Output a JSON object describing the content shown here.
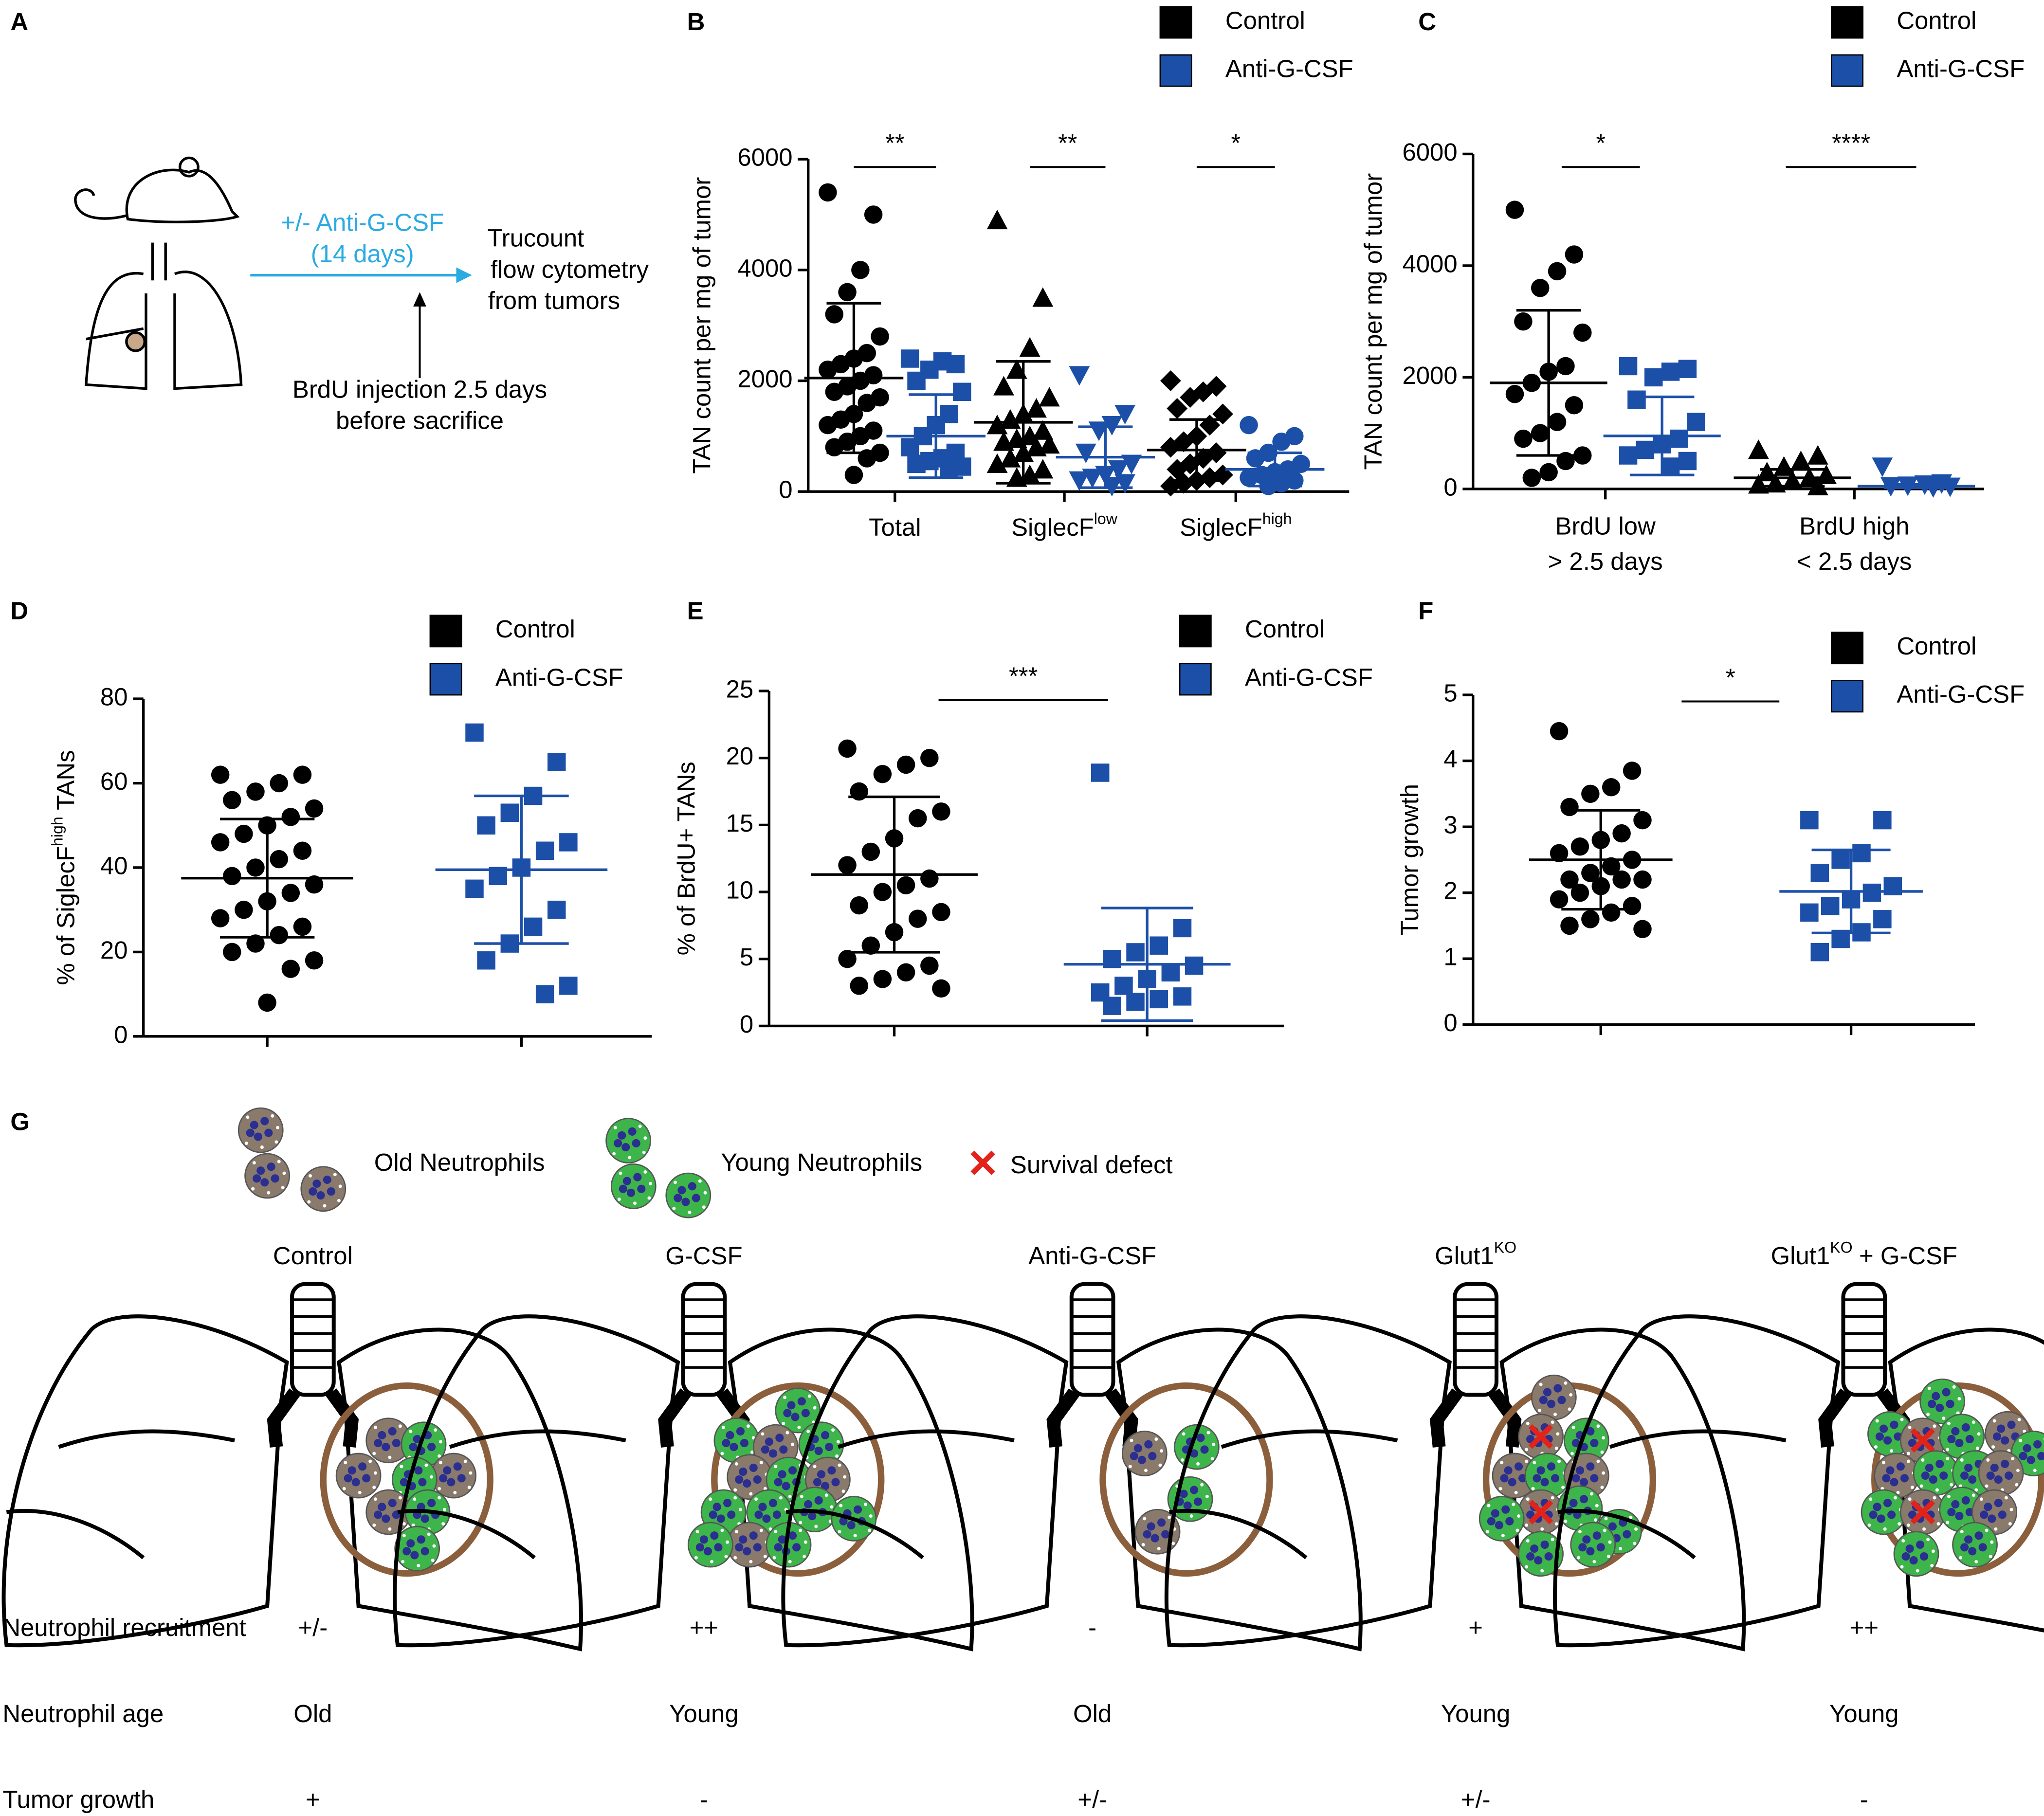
{
  "panel_a": {
    "letter": "A",
    "treatment": [
      "+/- Anti-G-CSF",
      "(14 days)"
    ],
    "readout": [
      "Trucount",
      "flow cytometry",
      "from tumors"
    ],
    "injection": [
      "BrdU injection 2.5 days",
      "before sacrifice"
    ]
  },
  "chart_data": [
    {
      "type": "dot",
      "panel": "B",
      "ylabel": "TAN count per mg of tumor",
      "ylim": [
        0,
        6000
      ],
      "yticks": [
        0,
        2000,
        4000,
        6000
      ],
      "categories": [
        "Total",
        "SiglecF",
        "SiglecF"
      ],
      "category_sups": [
        null,
        "low",
        "high"
      ],
      "series": [
        {
          "name": "Control",
          "color": "#000000",
          "markers": [
            "circle",
            "triangle",
            "diamond"
          ],
          "values": [
            [
              5400,
              5000,
              4000,
              3600,
              3200,
              2800,
              2500,
              2400,
              2300,
              2200,
              2100,
              2000,
              1900,
              1800,
              1700,
              1600,
              1400,
              1300,
              1200,
              1100,
              1000,
              900,
              800,
              700,
              600,
              300
            ],
            [
              4900,
              3500,
              2600,
              2200,
              1900,
              1700,
              1500,
              1400,
              1300,
              1200,
              1100,
              1000,
              950,
              900,
              850,
              800,
              700,
              600,
              500,
              400,
              300,
              250
            ],
            [
              2000,
              1900,
              1800,
              1700,
              1500,
              1400,
              1200,
              1000,
              900,
              800,
              700,
              600,
              500,
              400,
              300,
              250,
              200,
              150,
              100
            ]
          ],
          "means": [
            2050,
            1250,
            750
          ],
          "sds": [
            1350,
            1100,
            550
          ]
        },
        {
          "name": "Anti-G-CSF",
          "color": "#1c50a8",
          "markers": [
            "square",
            "triangle-down",
            "circle"
          ],
          "values": [
            [
              2400,
              2300,
              2350,
              2200,
              2000,
              1800,
              1400,
              1200,
              1000,
              800,
              700,
              600,
              550,
              500,
              450,
              400
            ],
            [
              2100,
              1400,
              1200,
              1100,
              700,
              500,
              400,
              300,
              250,
              200,
              150,
              100
            ],
            [
              1200,
              1000,
              900,
              700,
              600,
              500,
              400,
              350,
              300,
              250,
              200,
              150,
              100
            ]
          ],
          "means": [
            1000,
            620,
            400
          ],
          "sds": [
            750,
            550,
            300
          ]
        }
      ],
      "significance": [
        "**",
        "**",
        "*"
      ]
    },
    {
      "type": "dot",
      "panel": "C",
      "ylabel": "TAN count per mg of tumor",
      "ylim": [
        0,
        6000
      ],
      "yticks": [
        0,
        2000,
        4000,
        6000
      ],
      "categories": [
        [
          "BrdU low",
          "> 2.5 days"
        ],
        [
          "BrdU high",
          "< 2.5 days"
        ]
      ],
      "series": [
        {
          "name": "Control",
          "color": "#000000",
          "markers": [
            "circle",
            "triangle"
          ],
          "values": [
            [
              5000,
              4200,
              3900,
              3600,
              3000,
              2800,
              2200,
              2100,
              1900,
              1700,
              1500,
              1200,
              1000,
              900,
              600,
              500,
              300,
              200
            ],
            [
              700,
              600,
              500,
              400,
              300,
              250,
              200,
              150,
              100,
              80,
              50
            ]
          ],
          "means": [
            1900,
            200
          ],
          "sds": [
            1300,
            150
          ]
        },
        {
          "name": "Anti-G-CSF",
          "color": "#1c50a8",
          "markers": [
            "square",
            "triangle-down"
          ],
          "values": [
            [
              2200,
              2150,
              2100,
              2000,
              1600,
              1200,
              900,
              800,
              700,
              600,
              500,
              400
            ],
            [
              400,
              100,
              80,
              60,
              50,
              40,
              30
            ]
          ],
          "means": [
            950,
            50
          ],
          "sds": [
            700,
            30
          ]
        }
      ],
      "significance": [
        "*",
        "****"
      ]
    },
    {
      "type": "dot",
      "panel": "D",
      "ylabel": "% of  SiglecF",
      "ylabel_sup": "high",
      "ylabel_after": "TANs",
      "ylim": [
        0,
        80
      ],
      "yticks": [
        0,
        20,
        40,
        60,
        80
      ],
      "categories": [
        null
      ],
      "series": [
        {
          "name": "Control",
          "color": "#000000",
          "markers": [
            "circle"
          ],
          "values": [
            [
              62,
              62,
              60,
              58,
              56,
              54,
              52,
              50,
              48,
              46,
              44,
              42,
              40,
              38,
              36,
              34,
              32,
              30,
              28,
              26,
              24,
              22,
              20,
              18,
              16,
              8
            ]
          ],
          "means": [
            37.5
          ],
          "sds": [
            14
          ]
        },
        {
          "name": "Anti-G-CSF",
          "color": "#1c50a8",
          "markers": [
            "square"
          ],
          "values": [
            [
              72,
              65,
              57,
              53,
              50,
              46,
              44,
              40,
              38,
              35,
              30,
              26,
              22,
              18,
              12,
              10
            ]
          ],
          "means": [
            39.5
          ],
          "sds": [
            17.5
          ]
        }
      ],
      "significance": []
    },
    {
      "type": "dot",
      "panel": "E",
      "ylabel": "% of BrdU+ TANs",
      "ylim": [
        0,
        25
      ],
      "yticks": [
        0,
        5,
        10,
        15,
        20,
        25
      ],
      "categories": [
        null
      ],
      "series": [
        {
          "name": "Control",
          "color": "#000000",
          "markers": [
            "circle"
          ],
          "values": [
            [
              20.7,
              20,
              19.5,
              18.8,
              17.5,
              16,
              15.5,
              14,
              13,
              12,
              11,
              10.5,
              10,
              9,
              8.5,
              8,
              7,
              6,
              5,
              4.5,
              4,
              3.5,
              3,
              2.8
            ]
          ],
          "means": [
            11.3
          ],
          "sds": [
            5.8
          ]
        },
        {
          "name": "Anti-G-CSF",
          "color": "#1c50a8",
          "markers": [
            "square"
          ],
          "values": [
            [
              18.9,
              7.3,
              6,
              5.5,
              5,
              4.5,
              4,
              3.5,
              3,
              2.5,
              2.2,
              2,
              1.8,
              1.5
            ]
          ],
          "means": [
            4.6
          ],
          "sds": [
            4.2
          ]
        }
      ],
      "significance": [
        "***"
      ]
    },
    {
      "type": "dot",
      "panel": "F",
      "ylabel": "Tumor growth",
      "ylim": [
        0,
        5
      ],
      "yticks": [
        0,
        1,
        2,
        3,
        4,
        5
      ],
      "categories": [
        null
      ],
      "series": [
        {
          "name": "Control",
          "color": "#000000",
          "markers": [
            "circle"
          ],
          "values": [
            [
              4.45,
              3.85,
              3.6,
              3.5,
              3.3,
              3.1,
              2.9,
              2.8,
              2.7,
              2.6,
              2.5,
              2.4,
              2.3,
              2.2,
              2.2,
              2.2,
              2.1,
              2.0,
              1.9,
              1.8,
              1.7,
              1.6,
              1.5,
              1.45
            ]
          ],
          "means": [
            2.5
          ],
          "sds": [
            0.75
          ]
        },
        {
          "name": "Anti-G-CSF",
          "color": "#1c50a8",
          "markers": [
            "square"
          ],
          "values": [
            [
              3.1,
              3.1,
              2.6,
              2.5,
              2.3,
              2.1,
              2.0,
              1.9,
              1.8,
              1.7,
              1.6,
              1.4,
              1.3,
              1.1
            ]
          ],
          "means": [
            2.02
          ],
          "sds": [
            0.63
          ]
        }
      ],
      "significance": [
        "*"
      ]
    }
  ],
  "panel_g": {
    "letter": "G",
    "legend": {
      "old": "Old Neutrophils",
      "young": "Young Neutrophils",
      "defect": "Survival defect"
    },
    "columns": [
      {
        "title": "Control"
      },
      {
        "title": "G-CSF"
      },
      {
        "title": "Anti-G-CSF"
      },
      {
        "title": "Glut1",
        "sup": "KO"
      },
      {
        "title": "Glut1",
        "sup": "KO",
        "after": "+ G-CSF"
      }
    ],
    "rows": [
      {
        "label": "Neutrophil recruitment",
        "values": [
          "+/-",
          "++",
          "-",
          "+",
          "++"
        ]
      },
      {
        "label": "Neutrophil age",
        "values": [
          "Old",
          "Young",
          "Old",
          "Young",
          "Young"
        ]
      },
      {
        "label": "Tumor growth",
        "values": [
          "+",
          "-",
          "+/-",
          "+/-",
          "-"
        ]
      }
    ]
  }
}
